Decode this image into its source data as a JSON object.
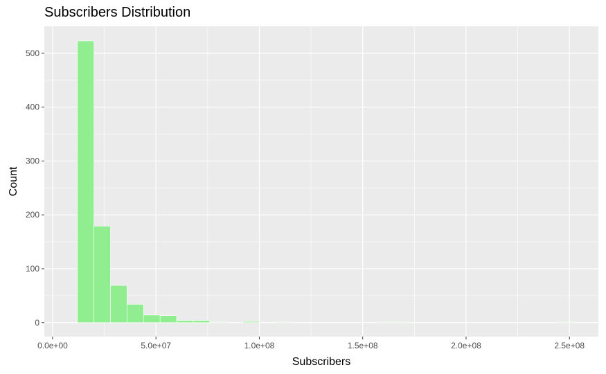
{
  "chart_data": {
    "type": "bar",
    "title": "Subscribers Distribution",
    "xlabel": "Subscribers",
    "ylabel": "Count",
    "x_ticks": [
      {
        "value": 0,
        "label": "0.0e+00"
      },
      {
        "value": 50000000,
        "label": "5.0e+07"
      },
      {
        "value": 100000000,
        "label": "1.0e+08"
      },
      {
        "value": 150000000,
        "label": "1.5e+08"
      },
      {
        "value": 200000000,
        "label": "2.0e+08"
      },
      {
        "value": 250000000,
        "label": "2.5e+08"
      }
    ],
    "y_ticks": [
      {
        "value": 0,
        "label": "0"
      },
      {
        "value": 100,
        "label": "100"
      },
      {
        "value": 200,
        "label": "200"
      },
      {
        "value": 300,
        "label": "300"
      },
      {
        "value": 400,
        "label": "400"
      },
      {
        "value": 500,
        "label": "500"
      }
    ],
    "xlim": [
      -4000000,
      264000000
    ],
    "ylim": [
      -26,
      550
    ],
    "bin_width": 8000000,
    "bins": [
      {
        "start": 12000000,
        "count": 523
      },
      {
        "start": 20000000,
        "count": 179
      },
      {
        "start": 28000000,
        "count": 69
      },
      {
        "start": 36000000,
        "count": 34
      },
      {
        "start": 44000000,
        "count": 14
      },
      {
        "start": 52000000,
        "count": 13
      },
      {
        "start": 60000000,
        "count": 4
      },
      {
        "start": 68000000,
        "count": 4
      },
      {
        "start": 76000000,
        "count": 1
      },
      {
        "start": 84000000,
        "count": 0
      },
      {
        "start": 92000000,
        "count": 2
      },
      {
        "start": 100000000,
        "count": 0
      },
      {
        "start": 108000000,
        "count": 1
      },
      {
        "start": 116000000,
        "count": 0
      },
      {
        "start": 124000000,
        "count": 0
      },
      {
        "start": 132000000,
        "count": 0
      },
      {
        "start": 140000000,
        "count": 0
      },
      {
        "start": 148000000,
        "count": 0
      },
      {
        "start": 156000000,
        "count": 1
      },
      {
        "start": 164000000,
        "count": 1
      },
      {
        "start": 172000000,
        "count": 0
      },
      {
        "start": 180000000,
        "count": 0
      },
      {
        "start": 188000000,
        "count": 0
      },
      {
        "start": 196000000,
        "count": 0
      },
      {
        "start": 204000000,
        "count": 0
      },
      {
        "start": 212000000,
        "count": 0
      },
      {
        "start": 220000000,
        "count": 0
      },
      {
        "start": 228000000,
        "count": 0
      },
      {
        "start": 236000000,
        "count": 0
      },
      {
        "start": 244000000,
        "count": 1
      }
    ],
    "grid": true,
    "colors": {
      "panel_background": "#ebebeb",
      "gridline": "#ffffff",
      "bar_fill": "#90ee90",
      "bar_outline": "#ffffff",
      "tick_color": "#333333"
    }
  }
}
